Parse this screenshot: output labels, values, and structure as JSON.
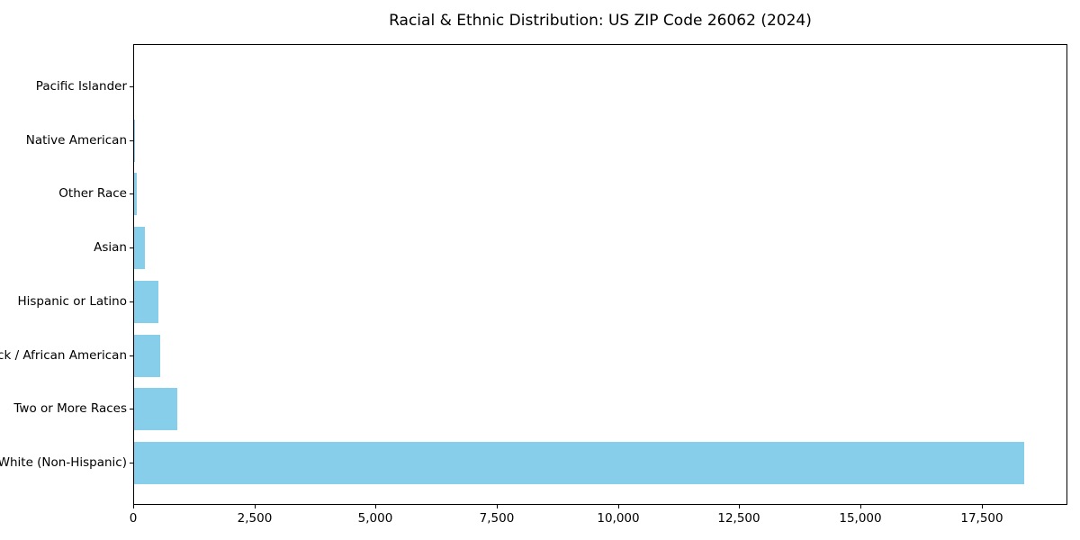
{
  "title": "Racial & Ethnic Distribution: US ZIP Code 26062 (2024)",
  "chart_data": {
    "type": "bar",
    "orientation": "horizontal",
    "title": "Racial & Ethnic Distribution: US ZIP Code 26062 (2024)",
    "categories": [
      "White (Non-Hispanic)",
      "Two or More Races",
      "Black / African American",
      "Hispanic or Latino",
      "Asian",
      "Other Race",
      "Native American",
      "Pacific Islander"
    ],
    "values": [
      18360,
      885,
      530,
      495,
      230,
      55,
      10,
      0
    ],
    "xlabel": "",
    "ylabel": "",
    "xlim": [
      0,
      19270
    ],
    "xticks": [
      0,
      2500,
      5000,
      7500,
      10000,
      12500,
      15000,
      17500
    ],
    "xtick_labels": [
      "0",
      "2,500",
      "5,000",
      "7,500",
      "10,000",
      "12,500",
      "15,000",
      "17,500"
    ],
    "bar_color": "#87CEEB",
    "background_color": "#ffffff",
    "spine_color": "#000000",
    "text_color": "#000000",
    "grid": false,
    "legend": null,
    "bar_fraction": 0.8
  }
}
